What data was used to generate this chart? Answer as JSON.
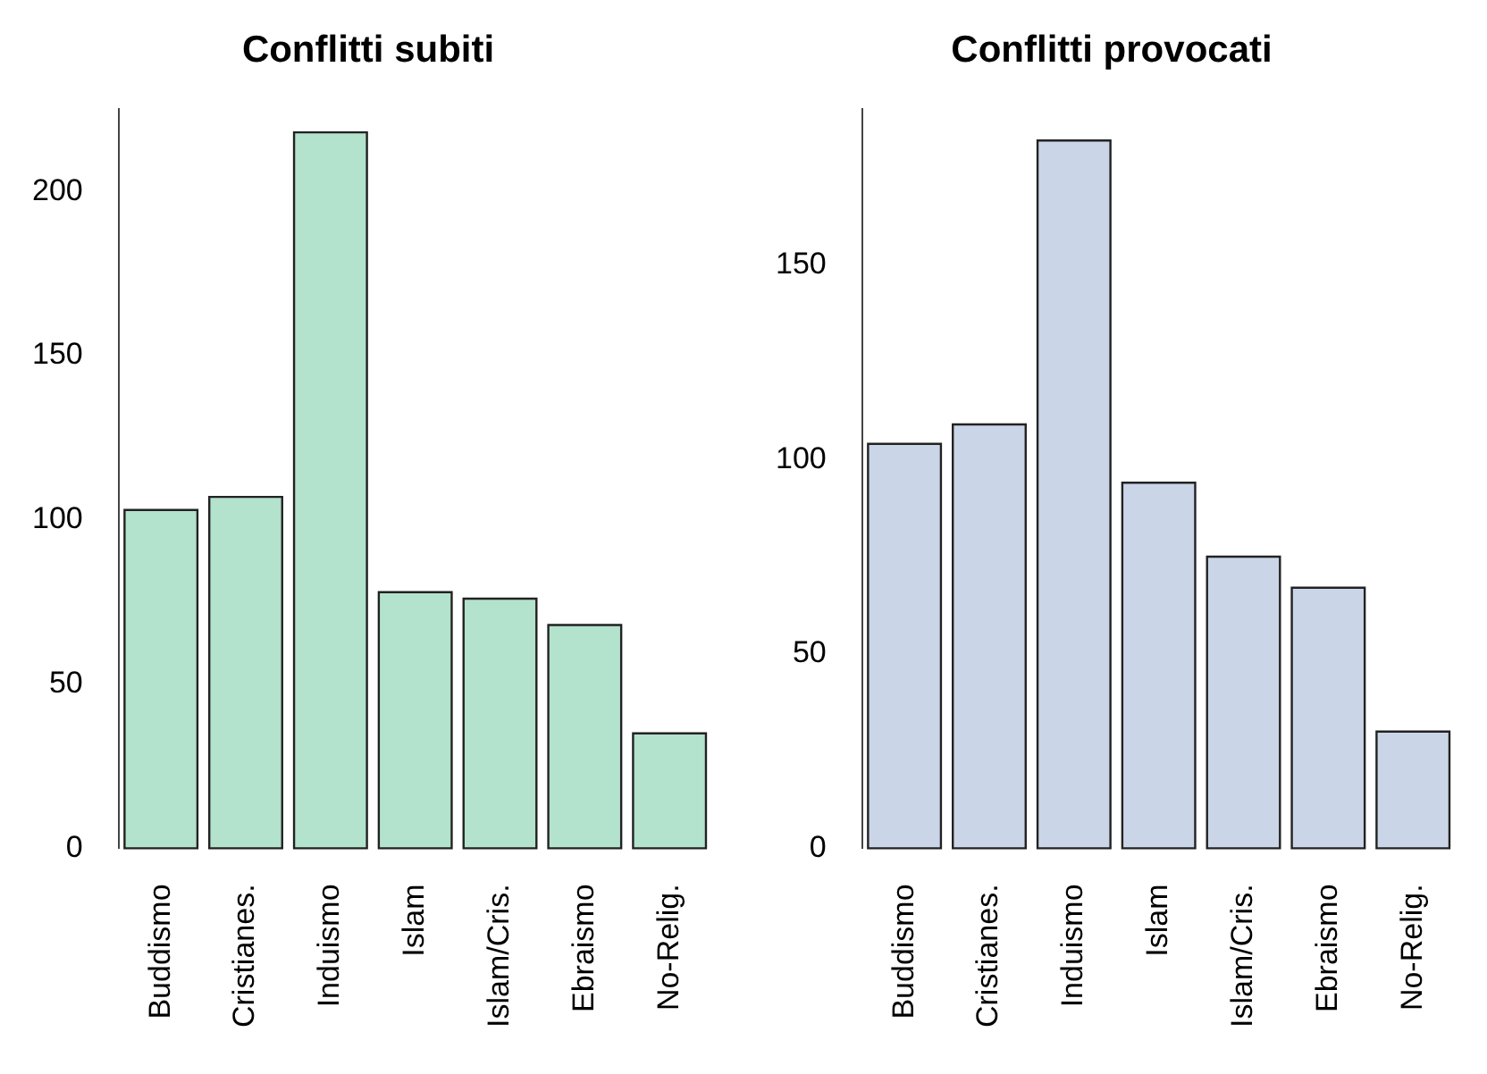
{
  "chart_data": [
    {
      "type": "bar",
      "title": "Conflitti subiti",
      "categories": [
        "Buddismo",
        "Cristianes.",
        "Induismo",
        "Islam",
        "Islam/Cris.",
        "Ebraismo",
        "No-Relig."
      ],
      "values": [
        103,
        107,
        218,
        78,
        76,
        68,
        35
      ],
      "color": "#b3e2cd",
      "ylim": [
        0,
        225
      ],
      "yticks": [
        0,
        50,
        100,
        150,
        200
      ],
      "grid": false,
      "legend": false
    },
    {
      "type": "bar",
      "title": "Conflitti provocati",
      "categories": [
        "Buddismo",
        "Cristianes.",
        "Induismo",
        "Islam",
        "Islam/Cris.",
        "Ebraismo",
        "No-Relig."
      ],
      "values": [
        104,
        109,
        182,
        94,
        75,
        67,
        30
      ],
      "color": "#cbd5e8",
      "ylim": [
        0,
        190
      ],
      "yticks": [
        0,
        50,
        100,
        150
      ],
      "grid": false,
      "legend": false
    }
  ]
}
